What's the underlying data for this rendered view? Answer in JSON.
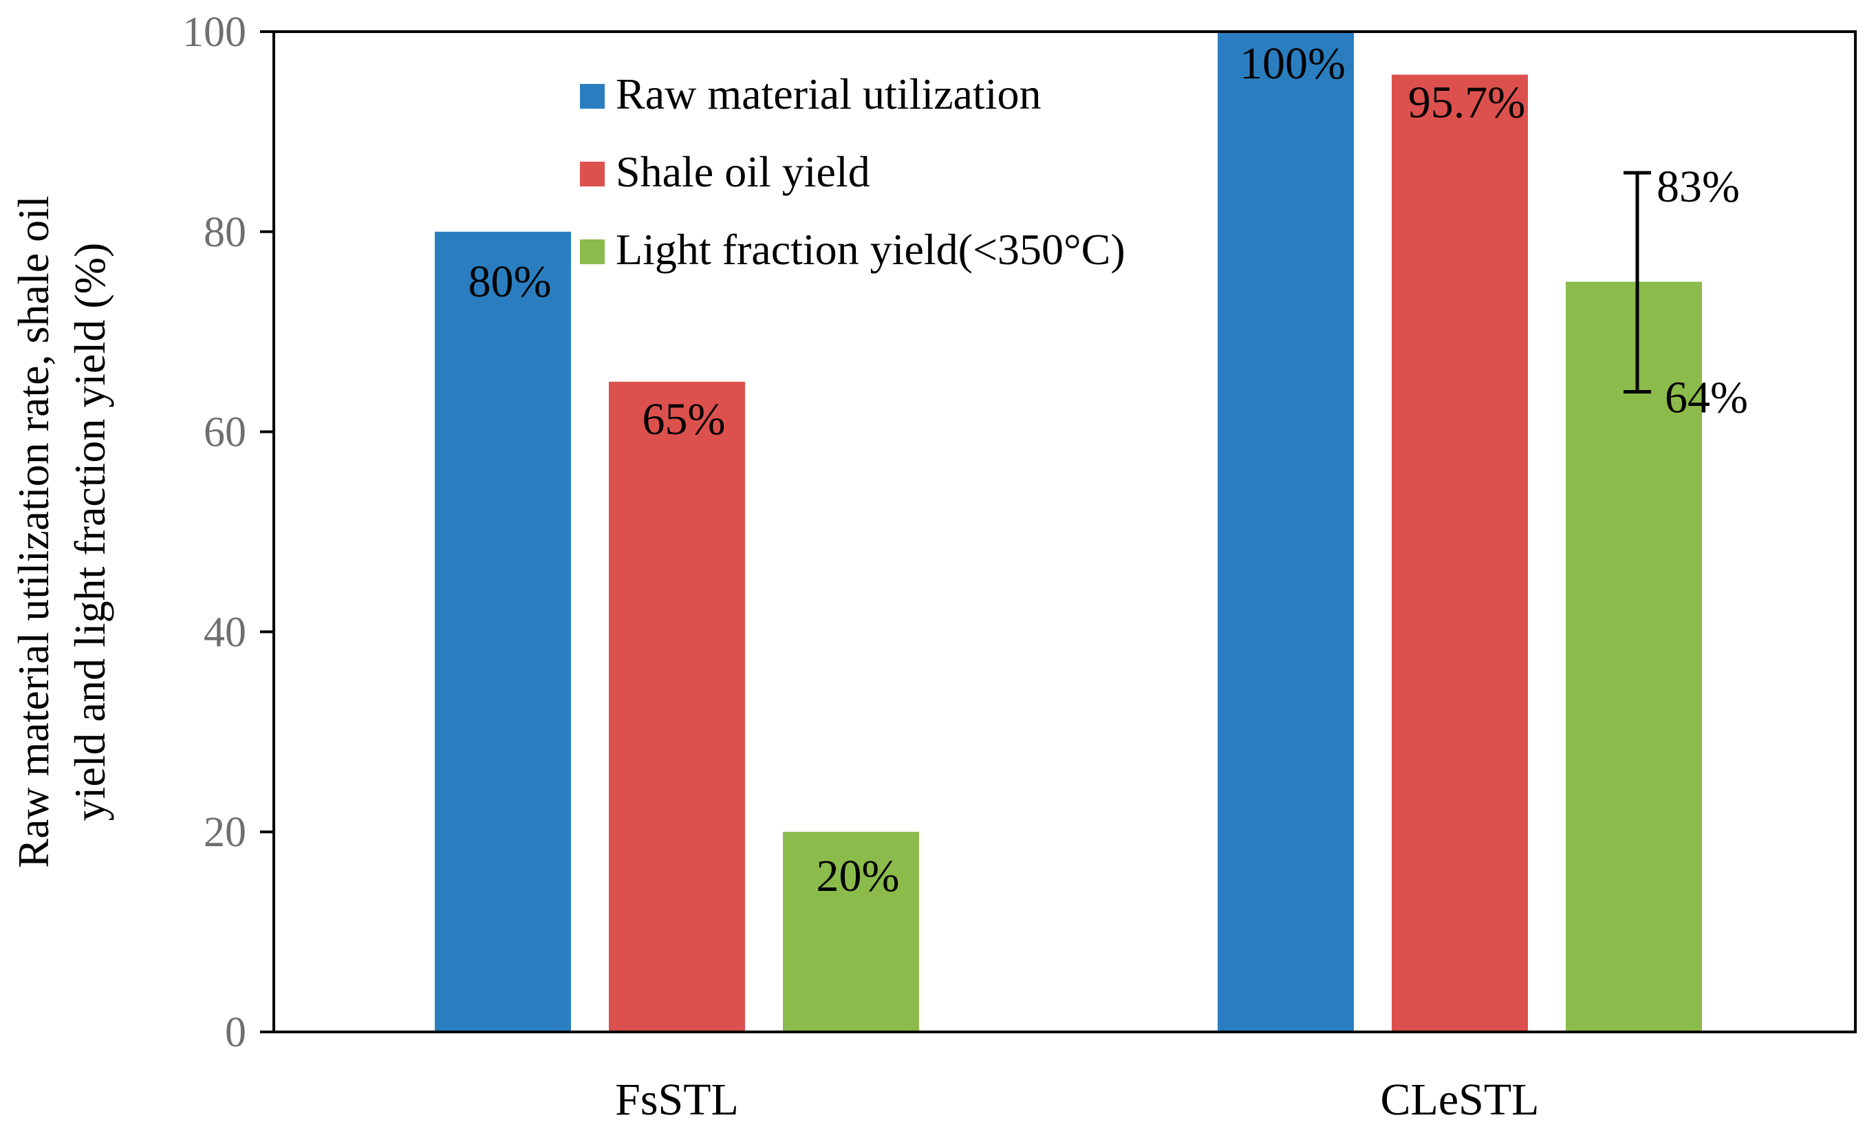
{
  "chart_data": {
    "type": "bar",
    "categories": [
      "FsSTL",
      "CLeSTL"
    ],
    "series": [
      {
        "name": "Raw material utilization",
        "values": [
          80,
          100
        ],
        "labels": [
          "80%",
          "100%"
        ],
        "color": "#2a7ec0"
      },
      {
        "name": "Shale oil yield",
        "values": [
          65,
          95.7
        ],
        "labels": [
          "65%",
          "95.7%"
        ],
        "color": "#dc514d"
      },
      {
        "name": "Light fraction yield(<350°C)",
        "values": [
          20,
          75
        ],
        "labels": [
          "20%",
          ""
        ],
        "color": "#8bbb4b"
      }
    ],
    "error_bar": {
      "category": "CLeSTL",
      "series": "Light fraction yield(<350°C)",
      "low": 64,
      "high": 83,
      "low_label": "64%",
      "high_label": "83%"
    },
    "ylabel_lines": [
      "Raw material utilization rate, shale oil",
      "yield and light fraction yield (%)"
    ],
    "xlabel": "",
    "ylim": [
      0,
      100
    ],
    "yticks": [
      0,
      20,
      40,
      60,
      80,
      100
    ],
    "legend_position": "top-center",
    "grid": false
  }
}
